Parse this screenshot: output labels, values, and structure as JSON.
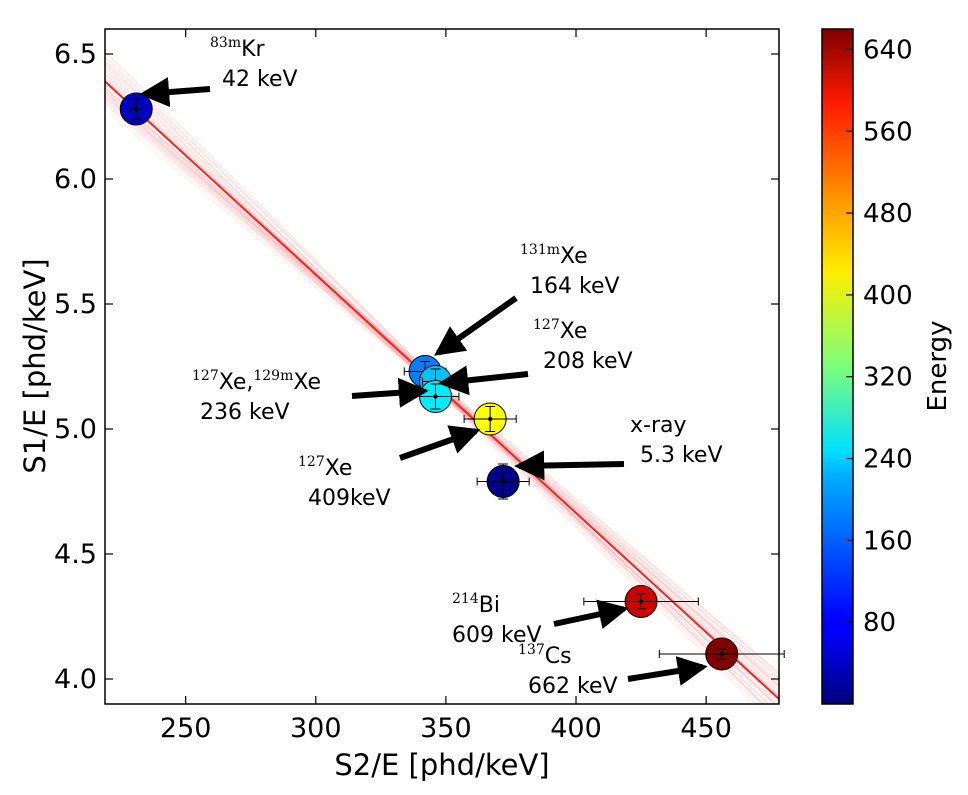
{
  "chart_data": {
    "type": "scatter",
    "xlabel": "S2/E [phd/keV]",
    "ylabel": "S1/E [phd/keV]",
    "xlim": [
      219,
      478
    ],
    "ylim": [
      3.9,
      6.6
    ],
    "x_ticks": [
      250,
      300,
      350,
      400,
      450
    ],
    "x_tick_labels": [
      "250",
      "300",
      "350",
      "400",
      "450"
    ],
    "y_ticks": [
      4.0,
      4.5,
      5.0,
      5.5,
      6.0,
      6.5
    ],
    "y_tick_labels": [
      "4.0",
      "4.5",
      "5.0",
      "5.5",
      "6.0",
      "6.5"
    ],
    "fit_line": {
      "x": [
        219,
        478
      ],
      "y": [
        6.39,
        3.92
      ],
      "color": "#ff2020"
    },
    "points": [
      {
        "name": "83mKr",
        "x": 231,
        "y": 6.28,
        "xerr": 2,
        "yerr": 0.04,
        "energy": 42
      },
      {
        "name": "131mXe",
        "x": 342,
        "y": 5.23,
        "xerr": 8,
        "yerr": 0.04,
        "energy": 164
      },
      {
        "name": "127Xe-208",
        "x": 346,
        "y": 5.19,
        "xerr": 5,
        "yerr": 0.05,
        "energy": 208
      },
      {
        "name": "127Xe-129mXe",
        "x": 346,
        "y": 5.13,
        "xerr": 9,
        "yerr": 0.05,
        "energy": 236
      },
      {
        "name": "127Xe-409",
        "x": 367,
        "y": 5.04,
        "xerr": 10,
        "yerr": 0.05,
        "energy": 409
      },
      {
        "name": "x-ray",
        "x": 372,
        "y": 4.79,
        "xerr": 10,
        "yerr": 0.07,
        "energy": 5.3
      },
      {
        "name": "214Bi",
        "x": 425,
        "y": 4.31,
        "xerr": 22,
        "yerr": 0.03,
        "energy": 609
      },
      {
        "name": "137Cs",
        "x": 456,
        "y": 4.1,
        "xerr": 24,
        "yerr": 0.02,
        "energy": 662
      }
    ],
    "annotations": [
      {
        "sup": "83m",
        "line1": "Kr",
        "line2": "42 keV",
        "tip": [
          231,
          6.28
        ]
      },
      {
        "sup": "131m",
        "line1": "Xe",
        "line2": "164 keV",
        "tip": [
          342,
          5.23
        ]
      },
      {
        "sup": "127",
        "line1": "Xe",
        "line2": "208 keV",
        "tip": [
          346,
          5.19
        ]
      },
      {
        "sup": "127",
        "line1": "Xe,",
        "sup2": "129m",
        "line1b": "Xe",
        "line2": "236 keV",
        "tip": [
          346,
          5.13
        ]
      },
      {
        "sup": "127",
        "line1": "Xe",
        "line2": "409keV",
        "tip": [
          367,
          5.04
        ]
      },
      {
        "line1": "x-ray",
        "line2": "5.3 keV",
        "tip": [
          372,
          4.79
        ]
      },
      {
        "sup": "214",
        "line1": "Bi",
        "line2": "609 keV",
        "tip": [
          425,
          4.31
        ]
      },
      {
        "sup": "137",
        "line1": "Cs",
        "line2": "662 keV",
        "tip": [
          456,
          4.1
        ]
      }
    ],
    "colorbar": {
      "label": "Energy",
      "range": [
        0,
        660
      ],
      "ticks": [
        80,
        160,
        240,
        320,
        400,
        480,
        560,
        640
      ],
      "tick_labels": [
        "80",
        "160",
        "240",
        "320",
        "400",
        "480",
        "560",
        "640"
      ],
      "colormap": "jet"
    }
  }
}
